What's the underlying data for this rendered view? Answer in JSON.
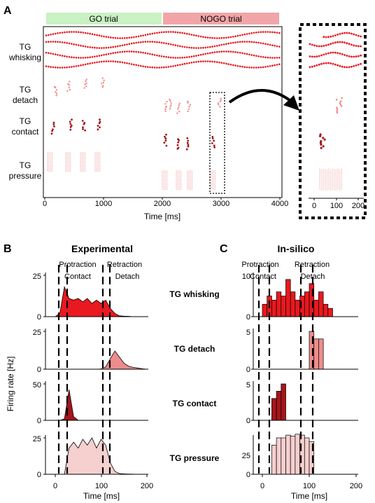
{
  "panel_a": {
    "letter": "A",
    "go_label": "GO trial",
    "nogo_label": "NOGO trial",
    "row_labels": {
      "whisking": [
        "TG",
        "whisking"
      ],
      "detach": [
        "TG",
        "detach"
      ],
      "contact": [
        "TG",
        "contact"
      ],
      "pressure": [
        "TG",
        "pressure"
      ]
    },
    "x_ticks": [
      "0",
      "1000",
      "2000",
      "3000",
      "4000"
    ],
    "x_label": "Time [ms]",
    "inset_ticks": [
      "0",
      "100",
      "200"
    ]
  },
  "panel_b": {
    "letter": "B",
    "title": "Experimental",
    "phase_top": [
      "Protraction",
      "Retraction"
    ],
    "phase_bottom": [
      "Contact",
      "Detach"
    ],
    "x_ticks": [
      "0",
      "100",
      "200"
    ],
    "x_label": "Time [ms]",
    "y_label": "Firing rate [Hz]",
    "rows": [
      {
        "y_ticks": [
          "25",
          "0"
        ]
      },
      {
        "y_ticks": [
          "25",
          "0"
        ]
      },
      {
        "y_ticks": [
          "50",
          "0"
        ]
      },
      {
        "y_ticks": [
          "25",
          "0"
        ]
      }
    ]
  },
  "center_labels": [
    "TG whisking",
    "TG detach",
    "TG contact",
    "TG pressure"
  ],
  "panel_c": {
    "letter": "C",
    "title": "In-silico",
    "phase_top": [
      "Protraction",
      "Retraction"
    ],
    "phase_bottom": [
      "Contact",
      "Detach"
    ],
    "x_ticks": [
      "0",
      "100",
      "200"
    ],
    "x_label": "Time [ms]",
    "rows": [
      {
        "y_ticks": [
          "10",
          "0"
        ]
      },
      {
        "y_ticks": [
          "5",
          "0"
        ]
      },
      {
        "y_ticks": [
          "5",
          "0"
        ]
      },
      {
        "y_ticks": [
          "25",
          "0"
        ]
      }
    ]
  },
  "colors": {
    "whisking": "#e8191f",
    "detach": "#ee8c8c",
    "contact": "#a5151a",
    "pressure": "#f6cfcf",
    "go_bar": "#c9f1c4",
    "nogo_bar": "#f2a5a8"
  },
  "chart_data": [
    {
      "type": "area",
      "panel": "B",
      "x": [
        0,
        10,
        20,
        30,
        40,
        50,
        60,
        70,
        80,
        90,
        100,
        110,
        120,
        130,
        140,
        150,
        160,
        170,
        180,
        190,
        200
      ],
      "series": [
        {
          "values": [
            0,
            2,
            18,
            11,
            10,
            11,
            9,
            11,
            8,
            10,
            8,
            10,
            5,
            2,
            0.5,
            0.3,
            0.2,
            0,
            0,
            0,
            0
          ]
        },
        {
          "values": [
            0,
            0,
            0,
            0,
            0,
            0,
            0,
            0,
            0,
            0,
            0.2,
            1.5,
            7,
            12,
            8,
            4,
            2,
            1.2,
            0.8,
            0.3,
            0
          ]
        },
        {
          "values": [
            0,
            0,
            2,
            42,
            5,
            0,
            0,
            0,
            0,
            0,
            0,
            0,
            0,
            0,
            0,
            0,
            0,
            0,
            0,
            0,
            0
          ]
        },
        {
          "values": [
            0,
            0,
            0,
            18,
            22,
            18,
            24,
            20,
            25,
            18,
            24,
            20,
            8,
            2,
            0.5,
            0.3,
            0.2,
            0.1,
            0,
            0,
            0
          ]
        }
      ]
    },
    {
      "type": "bar",
      "panel": "C",
      "bin_edges": [
        0,
        10,
        20,
        30,
        40,
        50,
        60,
        70,
        80,
        90,
        100,
        110,
        120,
        130,
        140,
        150,
        160
      ],
      "series": [
        {
          "values": [
            3,
            5,
            4,
            6,
            5,
            9,
            6,
            4,
            5,
            6,
            8,
            4,
            6,
            3,
            2,
            0
          ]
        },
        {
          "values": [
            0,
            0,
            0,
            0,
            0,
            0,
            0,
            0,
            0,
            0,
            5,
            4,
            4,
            0,
            0,
            0
          ]
        },
        {
          "values": [
            0,
            0,
            3,
            4,
            5,
            0,
            0,
            0,
            0,
            0,
            0,
            0,
            0,
            0,
            0,
            0
          ]
        },
        {
          "values": [
            0,
            0,
            32,
            40,
            40,
            43,
            42,
            44,
            43,
            40,
            36,
            0,
            0,
            0,
            0,
            0
          ]
        }
      ],
      "ylim_rows": [
        [
          0,
          10
        ],
        [
          0,
          5
        ],
        [
          0,
          5
        ],
        [
          0,
          40
        ]
      ]
    }
  ]
}
